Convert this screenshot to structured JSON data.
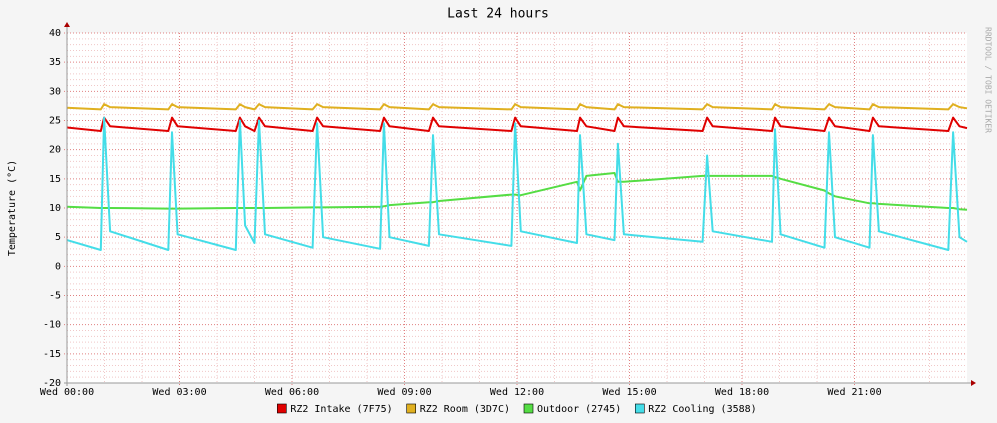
{
  "chart_data": {
    "type": "line",
    "title": "Last 24 hours",
    "y_label": "Temperature (°C)",
    "side_label": "RRDTOOL / TOBI OETIKER",
    "x": [
      0,
      0.9,
      0.99,
      1.15,
      2.7,
      2.8,
      2.95,
      4.5,
      4.61,
      4.75,
      5.0,
      5.12,
      5.28,
      6.55,
      6.67,
      6.83,
      8.35,
      8.45,
      8.6,
      9.65,
      9.76,
      9.92,
      11.85,
      11.95,
      12.1,
      13.6,
      13.68,
      13.85,
      14.6,
      14.69,
      14.85,
      16.95,
      17.07,
      17.22,
      18.8,
      18.88,
      19.03,
      20.2,
      20.32,
      20.48,
      21.4,
      21.49,
      21.65,
      23.5,
      23.63,
      23.8,
      24
    ],
    "xlim": [
      0,
      24
    ],
    "xticks": [
      {
        "value": 0,
        "label": "Wed 00:00"
      },
      {
        "value": 3,
        "label": "Wed 03:00"
      },
      {
        "value": 6,
        "label": "Wed 06:00"
      },
      {
        "value": 9,
        "label": "Wed 09:00"
      },
      {
        "value": 12,
        "label": "Wed 12:00"
      },
      {
        "value": 15,
        "label": "Wed 15:00"
      },
      {
        "value": 18,
        "label": "Wed 18:00"
      },
      {
        "value": 21,
        "label": "Wed 21:00"
      }
    ],
    "ylim": [
      -20,
      40
    ],
    "yticks": [
      -20,
      -15,
      -10,
      -5,
      0,
      5,
      10,
      15,
      20,
      25,
      30,
      35,
      40
    ],
    "grid": true,
    "legend": "bottom",
    "series": [
      {
        "name": "RZ2 Intake (7F75)",
        "color": "#e00000",
        "values": [
          23.8,
          23.2,
          25.5,
          24,
          23.2,
          25.5,
          24,
          23.2,
          25.5,
          24,
          23.2,
          25.5,
          24,
          23.2,
          25.5,
          24,
          23.2,
          25.5,
          24,
          23.2,
          25.5,
          24,
          23.2,
          25.5,
          24,
          23.2,
          25.5,
          24,
          23.2,
          25.5,
          24,
          23.2,
          25.5,
          24,
          23.2,
          25.5,
          24,
          23.2,
          25.5,
          24,
          23.2,
          25.5,
          24,
          23.2,
          25.5,
          24,
          23.7
        ]
      },
      {
        "name": "RZ2 Room (3D7C)",
        "color": "#e0b020",
        "values": [
          27.2,
          26.9,
          27.8,
          27.3,
          26.9,
          27.8,
          27.3,
          26.9,
          27.8,
          27.3,
          26.9,
          27.8,
          27.3,
          26.9,
          27.8,
          27.3,
          26.9,
          27.8,
          27.3,
          26.9,
          27.8,
          27.3,
          26.9,
          27.8,
          27.3,
          26.9,
          27.8,
          27.3,
          26.9,
          27.8,
          27.3,
          26.9,
          27.8,
          27.3,
          26.9,
          27.8,
          27.3,
          26.9,
          27.8,
          27.3,
          26.9,
          27.8,
          27.3,
          26.9,
          27.8,
          27.3,
          27.1
        ]
      },
      {
        "name": "Outdoor (2745)",
        "color": "#55dd44",
        "values": [
          10.2,
          10,
          10,
          10,
          9.9,
          9.9,
          9.9,
          10,
          10,
          10,
          10,
          10,
          10,
          10.1,
          10.1,
          10.1,
          10.2,
          10.3,
          10.5,
          11,
          11,
          11.2,
          12.3,
          12.3,
          12.2,
          14.5,
          13,
          15.5,
          16,
          14.5,
          14.5,
          15.5,
          15.5,
          15.5,
          15.5,
          15.3,
          15,
          13,
          12.5,
          12,
          10.8,
          10.8,
          10.7,
          10,
          10,
          9.8,
          9.7
        ]
      },
      {
        "name": "RZ2 Cooling (3588)",
        "color": "#44dde8",
        "values": [
          4.5,
          2.8,
          25.5,
          6,
          2.8,
          23,
          5.5,
          2.8,
          25,
          7,
          4,
          25,
          5.5,
          3.2,
          24.5,
          5,
          3,
          24.5,
          5,
          3.5,
          22.5,
          5.5,
          3.5,
          24.5,
          6,
          4,
          22.5,
          5.5,
          4.5,
          21,
          5.5,
          4.2,
          19,
          6,
          4.2,
          23.5,
          5.5,
          3.2,
          23,
          5,
          3.2,
          22.5,
          6,
          2.8,
          23,
          5,
          4.2
        ]
      }
    ]
  }
}
